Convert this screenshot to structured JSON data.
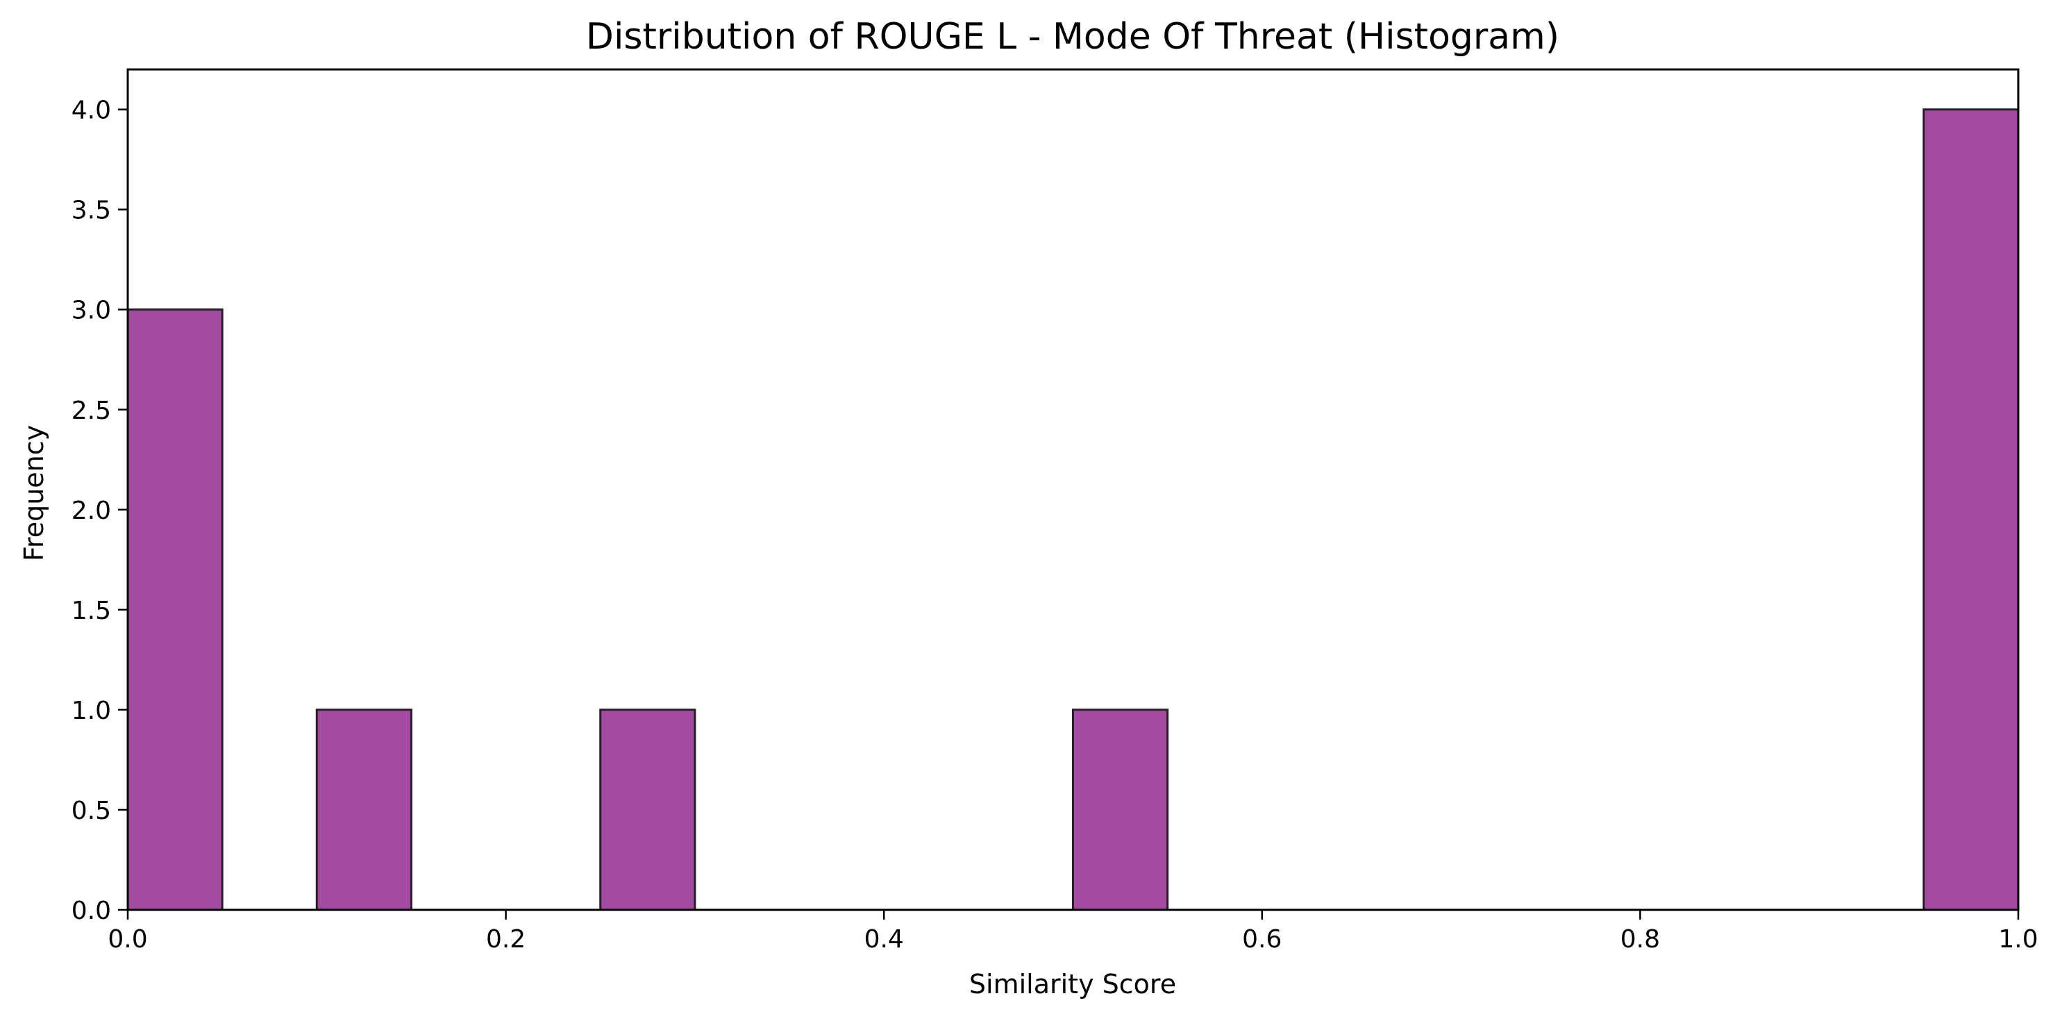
{
  "chart_data": {
    "type": "bar",
    "subtype": "histogram",
    "title": "Distribution of ROUGE L - Mode Of Threat (Histogram)",
    "xlabel": "Similarity Score",
    "ylabel": "Frequency",
    "xlim": [
      0.0,
      1.0
    ],
    "ylim": [
      0.0,
      4.2
    ],
    "xticks": [
      0.0,
      0.2,
      0.4,
      0.6,
      0.8,
      1.0
    ],
    "xtick_labels": [
      "0.0",
      "0.2",
      "0.4",
      "0.6",
      "0.8",
      "1.0"
    ],
    "yticks": [
      0.0,
      0.5,
      1.0,
      1.5,
      2.0,
      2.5,
      3.0,
      3.5,
      4.0
    ],
    "ytick_labels": [
      "0.0",
      "0.5",
      "1.0",
      "1.5",
      "2.0",
      "2.5",
      "3.0",
      "3.5",
      "4.0"
    ],
    "bin_edges": [
      0.0,
      0.05,
      0.1,
      0.15,
      0.2,
      0.25,
      0.3,
      0.35,
      0.4,
      0.45,
      0.5,
      0.55,
      0.6,
      0.65,
      0.7,
      0.75,
      0.8,
      0.85,
      0.9,
      0.95,
      1.0
    ],
    "counts": [
      3,
      0,
      1,
      0,
      0,
      1,
      0,
      0,
      0,
      0,
      1,
      0,
      0,
      0,
      0,
      0,
      0,
      0,
      0,
      4
    ],
    "bar_color": "#a24ba1",
    "edge_color": "#2b1b2b",
    "grid": false,
    "legend": "none"
  }
}
